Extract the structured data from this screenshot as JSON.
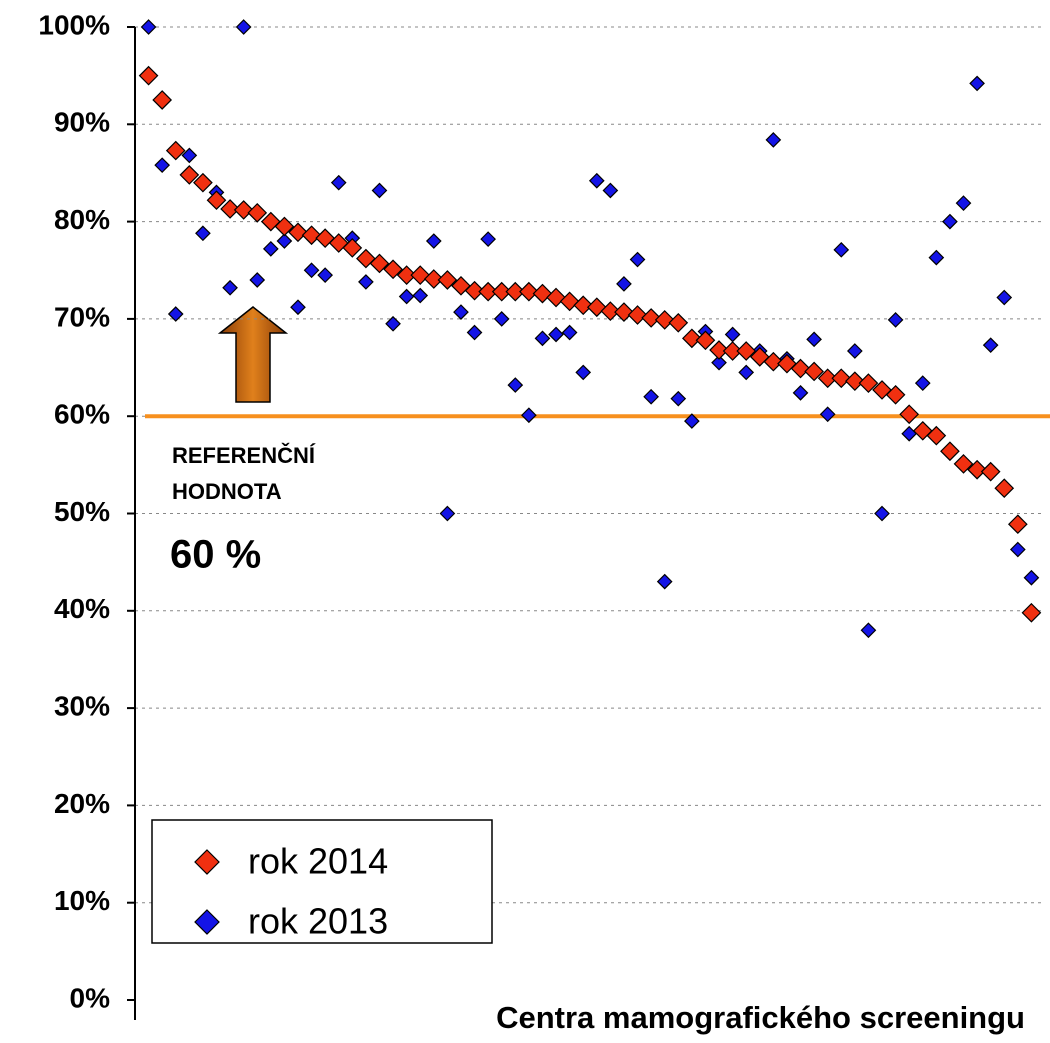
{
  "chart_data": {
    "type": "scatter",
    "x_label": "Centra mamografického screeningu",
    "x": [
      1,
      2,
      3,
      4,
      5,
      6,
      7,
      8,
      9,
      10,
      11,
      12,
      13,
      14,
      15,
      16,
      17,
      18,
      19,
      20,
      21,
      22,
      23,
      24,
      25,
      26,
      27,
      28,
      29,
      30,
      31,
      32,
      33,
      34,
      35,
      36,
      37,
      38,
      39,
      40,
      41,
      42,
      43,
      44,
      45,
      46,
      47,
      48,
      49,
      50,
      51,
      52,
      53,
      54,
      55,
      56,
      57,
      58,
      59,
      60,
      61,
      62,
      63,
      64,
      65,
      66
    ],
    "xlim": [
      0,
      67
    ],
    "ylim": [
      0,
      100
    ],
    "yticks": [
      {
        "value": 0,
        "label": "0%"
      },
      {
        "value": 10,
        "label": "10%"
      },
      {
        "value": 20,
        "label": "20%"
      },
      {
        "value": 30,
        "label": "30%"
      },
      {
        "value": 40,
        "label": "40%"
      },
      {
        "value": 50,
        "label": "50%"
      },
      {
        "value": 60,
        "label": "60%"
      },
      {
        "value": 70,
        "label": "70%"
      },
      {
        "value": 80,
        "label": "80%"
      },
      {
        "value": 90,
        "label": "90%"
      },
      {
        "value": 100,
        "label": "100%"
      }
    ],
    "grid": true,
    "series": [
      {
        "name": "rok 2014",
        "color": "#f03010",
        "values": [
          95,
          92.5,
          87.3,
          84.8,
          84,
          82.2,
          81.3,
          81.2,
          80.9,
          80,
          79.5,
          78.9,
          78.6,
          78.3,
          77.8,
          77.3,
          76.2,
          75.7,
          75.1,
          74.5,
          74.5,
          74.1,
          74.0,
          73.4,
          72.9,
          72.8,
          72.8,
          72.8,
          72.8,
          72.6,
          72.2,
          71.8,
          71.4,
          71.2,
          70.8,
          70.7,
          70.4,
          70.1,
          69.9,
          69.6,
          68.0,
          67.8,
          66.8,
          66.7,
          66.7,
          66.1,
          65.6,
          65.4,
          64.9,
          64.6,
          63.9,
          63.9,
          63.6,
          63.4,
          62.7,
          62.2,
          60.2,
          58.5,
          58.0,
          56.4,
          55.1,
          54.5,
          54.3,
          52.6,
          48.9,
          39.8
        ]
      },
      {
        "name": "rok 2013",
        "color": "#1414e6",
        "values": [
          100,
          85.8,
          70.5,
          86.8,
          78.8,
          83,
          73.2,
          100,
          74,
          77.2,
          78,
          71.2,
          75,
          74.5,
          84,
          78.3,
          73.8,
          83.2,
          69.5,
          72.3,
          72.4,
          78,
          50,
          70.7,
          68.6,
          78.2,
          70,
          63.2,
          60.1,
          68,
          68.4,
          68.6,
          64.5,
          84.2,
          83.2,
          73.6,
          76.1,
          62,
          43,
          61.8,
          59.5,
          68.7,
          65.5,
          68.4,
          64.5,
          66.7,
          88.4,
          65.9,
          62.4,
          67.9,
          60.2,
          77.1,
          66.7,
          38,
          50,
          69.9,
          58.2,
          63.4,
          76.3,
          80,
          81.9,
          94.2,
          67.3,
          72.2,
          46.3,
          43.4
        ]
      }
    ],
    "reference": {
      "value": 60,
      "label": "60 %",
      "title": [
        "REFERENČNÍ",
        "HODNOTA"
      ],
      "color": "#f7901e"
    },
    "legend": "bottom-left"
  }
}
